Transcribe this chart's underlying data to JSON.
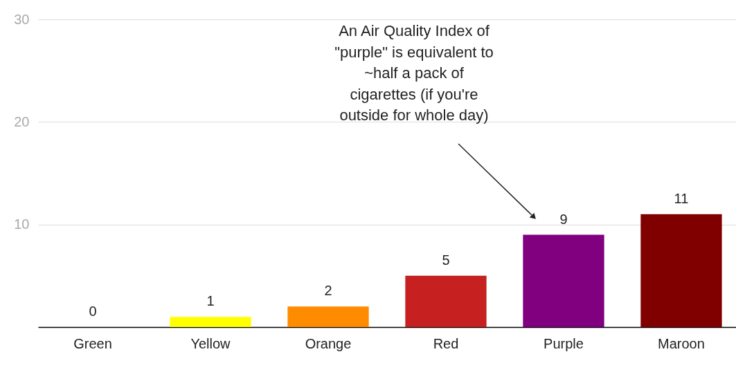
{
  "chart_data": {
    "type": "bar",
    "categories": [
      "Green",
      "Yellow",
      "Orange",
      "Red",
      "Purple",
      "Maroon"
    ],
    "values": [
      0,
      1,
      2,
      5,
      9,
      11
    ],
    "colors": [
      "#0f9d58",
      "#ffff00",
      "#ff8c00",
      "#c62020",
      "#800080",
      "#800000"
    ],
    "ylim": [
      0,
      30
    ],
    "yticks": [
      {
        "value": 0,
        "label": null
      },
      10,
      20,
      30
    ],
    "grid": "y",
    "data_labels": true,
    "annotations": [
      "An Air Quality Index of\n\"purple\" is equivalent to\n~half a pack of\ncigarettes (if you're\noutside for whole day)"
    ]
  }
}
